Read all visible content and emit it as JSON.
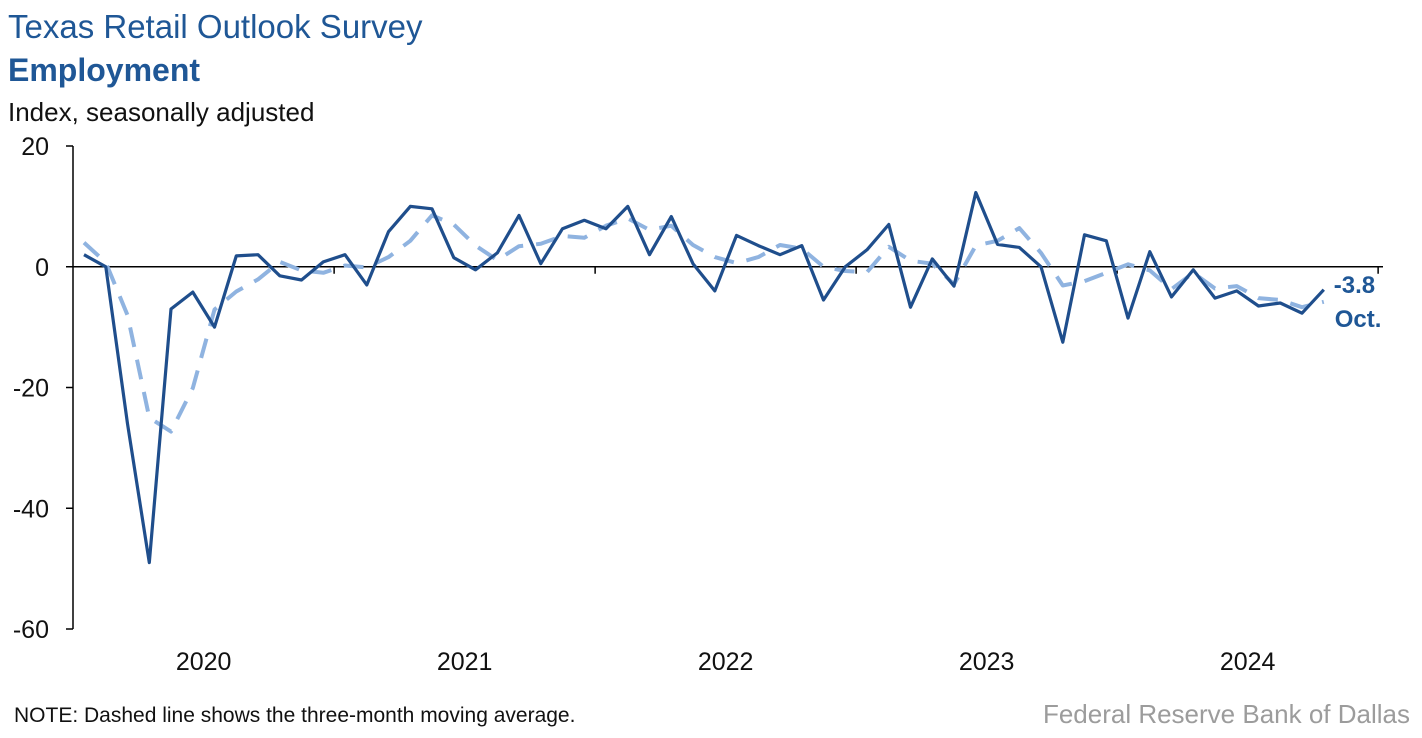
{
  "header": {
    "title": "Texas Retail Outlook Survey",
    "subtitle": "Employment",
    "ylabel": "Index, seasonally adjusted"
  },
  "footer": {
    "note": "NOTE: Dashed line shows the three-month moving average.",
    "source": "Federal Reserve Bank of Dallas"
  },
  "colors": {
    "series": "#1f4e8c",
    "moving_average": "#8fb3e0",
    "text_accent": "#1f5796"
  },
  "chart_data": {
    "type": "line",
    "title": "Texas Retail Outlook Survey",
    "subtitle": "Employment",
    "ylabel": "Index, seasonally adjusted",
    "ylim": [
      -60,
      20
    ],
    "yticks": [
      20,
      0,
      -20,
      -40,
      -60
    ],
    "year_labels": [
      "2020",
      "2021",
      "2022",
      "2023",
      "2024"
    ],
    "x_start": "2020-01",
    "x_end": "2024-10",
    "grid": false,
    "last_value_label": "-3.8",
    "last_period_label": "Oct.",
    "series": [
      {
        "style": "solid",
        "values": [
          2.0,
          0.0,
          -26.0,
          -49.0,
          -7.0,
          -4.2,
          -10.0,
          1.8,
          2.0,
          -1.5,
          -2.2,
          0.8,
          2.0,
          -3.0,
          5.8,
          10.0,
          9.6,
          1.5,
          -0.5,
          2.3,
          8.5,
          0.5,
          6.3,
          7.7,
          6.3,
          10.0,
          2.0,
          8.3,
          0.5,
          -4.0,
          5.2,
          3.5,
          2.0,
          3.5,
          -5.5,
          0.0,
          2.8,
          7.0,
          -6.7,
          1.3,
          -3.2,
          12.3,
          3.7,
          3.2,
          0.0,
          -12.5,
          5.3,
          4.3,
          -8.5,
          2.5,
          -5.0,
          -0.5,
          -5.2,
          -4.0,
          -6.5,
          -6.0,
          -7.7,
          -3.8
        ]
      },
      {
        "style": "dashed",
        "values": [
          4.0,
          0.7,
          -8.0,
          -25.0,
          -27.3,
          -20.1,
          -7.1,
          -4.1,
          -2.1,
          0.8,
          -0.6,
          -1.0,
          0.2,
          -0.1,
          1.6,
          4.3,
          8.5,
          7.0,
          3.5,
          1.1,
          3.4,
          3.8,
          5.1,
          4.8,
          6.8,
          8.0,
          6.1,
          6.8,
          3.6,
          1.6,
          0.6,
          1.6,
          3.6,
          3.0,
          0.0,
          -0.7,
          -0.9,
          3.3,
          1.0,
          0.5,
          -2.9,
          3.5,
          4.3,
          6.4,
          2.3,
          -3.1,
          -2.4,
          -1.0,
          0.4,
          -0.6,
          -3.7,
          -1.0,
          -3.6,
          -3.2,
          -5.2,
          -5.5,
          -6.7,
          -5.8
        ]
      }
    ]
  }
}
